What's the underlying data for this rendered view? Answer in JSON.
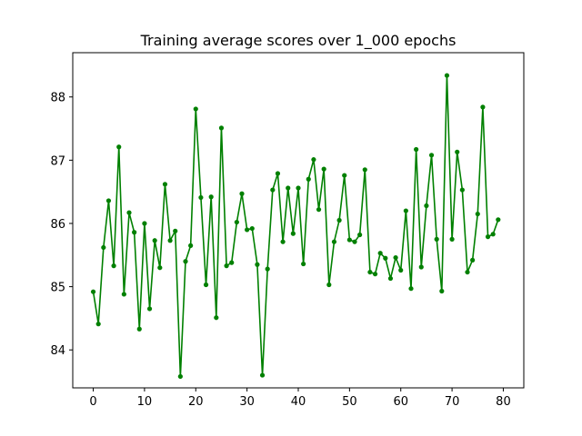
{
  "chart_data": {
    "type": "line",
    "title": "Training average scores over 1_000 epochs",
    "xlabel": "",
    "ylabel": "",
    "xlim": [
      -4,
      84
    ],
    "ylim": [
      83.4,
      88.7
    ],
    "xticks": [
      0,
      10,
      20,
      30,
      40,
      50,
      60,
      70,
      80
    ],
    "yticks": [
      84,
      85,
      86,
      87,
      88
    ],
    "grid": false,
    "legend": "none",
    "series": [
      {
        "color": "#008000",
        "marker": "circle",
        "x": [
          0,
          1,
          2,
          3,
          4,
          5,
          6,
          7,
          8,
          9,
          10,
          11,
          12,
          13,
          14,
          15,
          16,
          17,
          18,
          19,
          20,
          21,
          22,
          23,
          24,
          25,
          26,
          27,
          28,
          29,
          30,
          31,
          32,
          33,
          34,
          35,
          36,
          37,
          38,
          39,
          40,
          41,
          42,
          43,
          44,
          45,
          46,
          47,
          48,
          49,
          50,
          51,
          52,
          53,
          54,
          55,
          56,
          57,
          58,
          59,
          60,
          61,
          62,
          63,
          64,
          65,
          66,
          67,
          68,
          69,
          70,
          71,
          72,
          73,
          74,
          75,
          76,
          77,
          78,
          79
        ],
        "values": [
          84.92,
          84.41,
          85.62,
          86.36,
          85.33,
          87.21,
          84.88,
          86.17,
          85.86,
          84.33,
          86.0,
          84.65,
          85.73,
          85.3,
          86.62,
          85.73,
          85.88,
          83.58,
          85.4,
          85.65,
          87.81,
          86.41,
          85.03,
          86.42,
          84.51,
          87.51,
          85.33,
          85.38,
          86.02,
          86.47,
          85.9,
          85.92,
          85.35,
          83.6,
          85.28,
          86.53,
          86.79,
          85.71,
          86.56,
          85.84,
          86.56,
          85.36,
          86.7,
          87.01,
          86.22,
          86.86,
          85.03,
          85.71,
          86.05,
          86.76,
          85.74,
          85.71,
          85.82,
          86.85,
          85.23,
          85.2,
          85.53,
          85.45,
          85.13,
          85.46,
          85.26,
          86.2,
          84.97,
          87.17,
          85.31,
          86.28,
          87.08,
          85.75,
          84.93,
          88.34,
          85.75,
          87.13,
          86.53,
          85.23,
          85.42,
          86.15,
          87.84,
          85.79,
          85.83,
          86.06
        ]
      }
    ]
  }
}
